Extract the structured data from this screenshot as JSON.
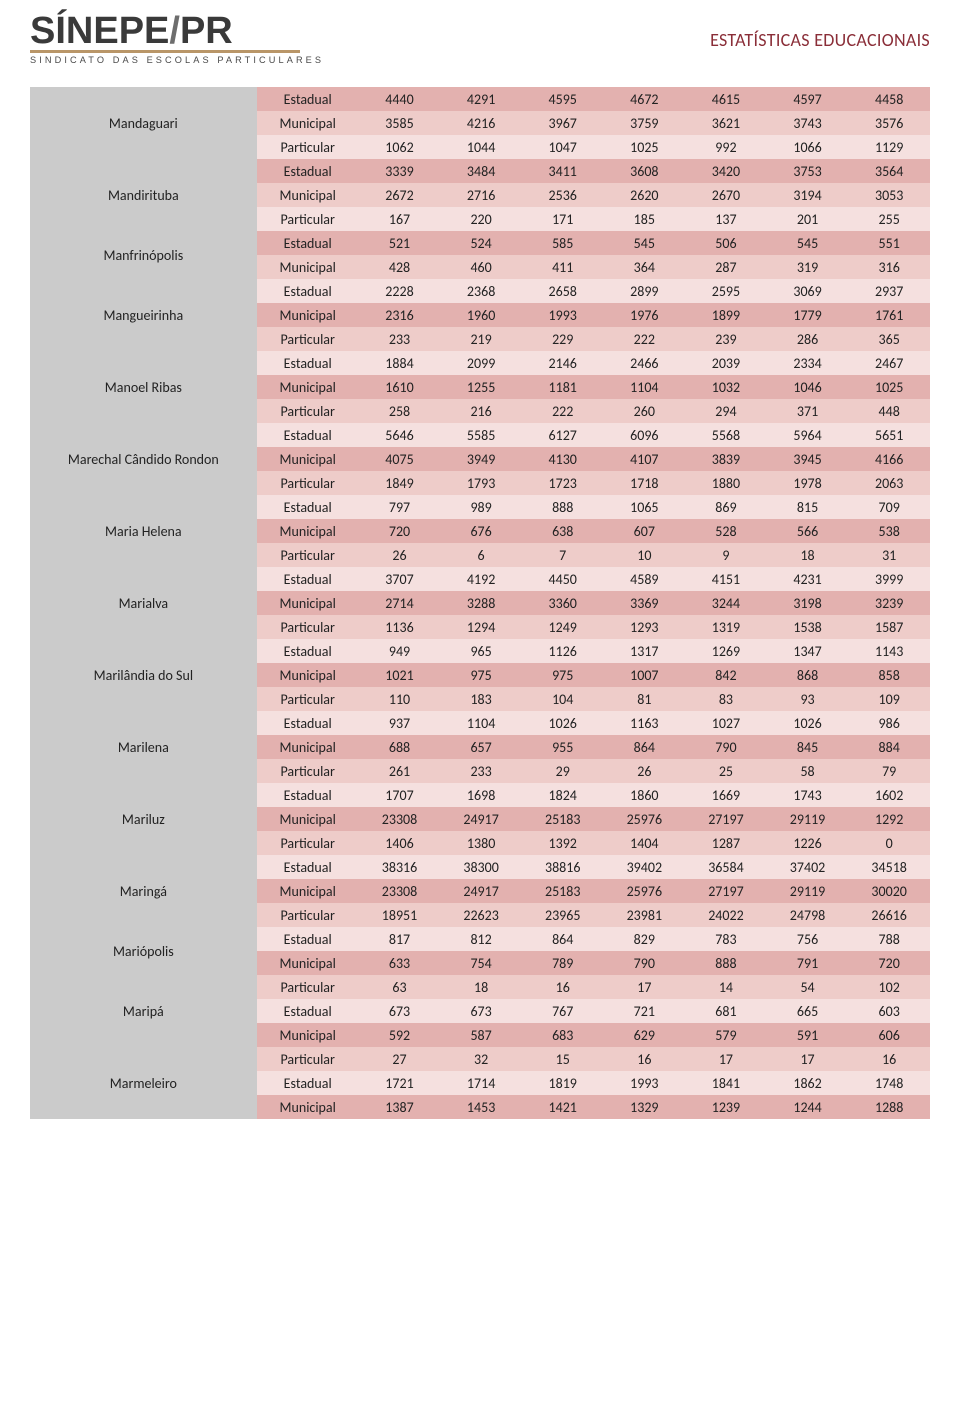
{
  "header": {
    "logo_main_left": "SÍNEPE",
    "logo_main_sep": "/",
    "logo_main_right": "PR",
    "logo_sub": "SINDICATO DAS ESCOLAS PARTICULARES",
    "title": "ESTATÍSTICAS EDUCACIONAIS"
  },
  "colors": {
    "tier": [
      "#e3b1af",
      "#eeccc9",
      "#f5e0df"
    ],
    "city_bg": "#cbcbcb",
    "text": "#222222",
    "title": "#8a2e38",
    "logo_bar": "#b99668"
  },
  "cities": [
    {
      "name": "Mandaguari",
      "rows": [
        {
          "type": "Estadual",
          "values": [
            4440,
            4291,
            4595,
            4672,
            4615,
            4597,
            4458
          ]
        },
        {
          "type": "Municipal",
          "values": [
            3585,
            4216,
            3967,
            3759,
            3621,
            3743,
            3576
          ]
        },
        {
          "type": "Particular",
          "values": [
            1062,
            1044,
            1047,
            1025,
            992,
            1066,
            1129
          ]
        }
      ]
    },
    {
      "name": "Mandirituba",
      "rows": [
        {
          "type": "Estadual",
          "values": [
            3339,
            3484,
            3411,
            3608,
            3420,
            3753,
            3564
          ]
        },
        {
          "type": "Municipal",
          "values": [
            2672,
            2716,
            2536,
            2620,
            2670,
            3194,
            3053
          ]
        },
        {
          "type": "Particular",
          "values": [
            167,
            220,
            171,
            185,
            137,
            201,
            255
          ]
        }
      ]
    },
    {
      "name": "Manfrinópolis",
      "rows": [
        {
          "type": "Estadual",
          "values": [
            521,
            524,
            585,
            545,
            506,
            545,
            551
          ]
        },
        {
          "type": "Municipal",
          "values": [
            428,
            460,
            411,
            364,
            287,
            319,
            316
          ]
        }
      ]
    },
    {
      "name": "Mangueirinha",
      "rows": [
        {
          "type": "Estadual",
          "values": [
            2228,
            2368,
            2658,
            2899,
            2595,
            3069,
            2937
          ]
        },
        {
          "type": "Municipal",
          "values": [
            2316,
            1960,
            1993,
            1976,
            1899,
            1779,
            1761
          ]
        },
        {
          "type": "Particular",
          "values": [
            233,
            219,
            229,
            222,
            239,
            286,
            365
          ]
        }
      ]
    },
    {
      "name": "Manoel Ribas",
      "rows": [
        {
          "type": "Estadual",
          "values": [
            1884,
            2099,
            2146,
            2466,
            2039,
            2334,
            2467
          ]
        },
        {
          "type": "Municipal",
          "values": [
            1610,
            1255,
            1181,
            1104,
            1032,
            1046,
            1025
          ]
        },
        {
          "type": "Particular",
          "values": [
            258,
            216,
            222,
            260,
            294,
            371,
            448
          ]
        }
      ]
    },
    {
      "name": "Marechal Cândido Rondon",
      "rows": [
        {
          "type": "Estadual",
          "values": [
            5646,
            5585,
            6127,
            6096,
            5568,
            5964,
            5651
          ]
        },
        {
          "type": "Municipal",
          "values": [
            4075,
            3949,
            4130,
            4107,
            3839,
            3945,
            4166
          ]
        },
        {
          "type": "Particular",
          "values": [
            1849,
            1793,
            1723,
            1718,
            1880,
            1978,
            2063
          ]
        }
      ]
    },
    {
      "name": "Maria Helena",
      "rows": [
        {
          "type": "Estadual",
          "values": [
            797,
            989,
            888,
            1065,
            869,
            815,
            709
          ]
        },
        {
          "type": "Municipal",
          "values": [
            720,
            676,
            638,
            607,
            528,
            566,
            538
          ]
        },
        {
          "type": "Particular",
          "values": [
            26,
            6,
            7,
            10,
            9,
            18,
            31
          ]
        }
      ]
    },
    {
      "name": "Marialva",
      "rows": [
        {
          "type": "Estadual",
          "values": [
            3707,
            4192,
            4450,
            4589,
            4151,
            4231,
            3999
          ]
        },
        {
          "type": "Municipal",
          "values": [
            2714,
            3288,
            3360,
            3369,
            3244,
            3198,
            3239
          ]
        },
        {
          "type": "Particular",
          "values": [
            1136,
            1294,
            1249,
            1293,
            1319,
            1538,
            1587
          ]
        }
      ]
    },
    {
      "name": "Marilândia do Sul",
      "rows": [
        {
          "type": "Estadual",
          "values": [
            949,
            965,
            1126,
            1317,
            1269,
            1347,
            1143
          ]
        },
        {
          "type": "Municipal",
          "values": [
            1021,
            975,
            975,
            1007,
            842,
            868,
            858
          ]
        },
        {
          "type": "Particular",
          "values": [
            110,
            183,
            104,
            81,
            83,
            93,
            109
          ]
        }
      ]
    },
    {
      "name": "Marilena",
      "rows": [
        {
          "type": "Estadual",
          "values": [
            937,
            1104,
            1026,
            1163,
            1027,
            1026,
            986
          ]
        },
        {
          "type": "Municipal",
          "values": [
            688,
            657,
            955,
            864,
            790,
            845,
            884
          ]
        },
        {
          "type": "Particular",
          "values": [
            261,
            233,
            29,
            26,
            25,
            58,
            79
          ]
        }
      ]
    },
    {
      "name": "Mariluz",
      "rows": [
        {
          "type": "Estadual",
          "values": [
            1707,
            1698,
            1824,
            1860,
            1669,
            1743,
            1602
          ]
        },
        {
          "type": "Municipal",
          "values": [
            23308,
            24917,
            25183,
            25976,
            27197,
            29119,
            1292
          ]
        },
        {
          "type": "Particular",
          "values": [
            1406,
            1380,
            1392,
            1404,
            1287,
            1226,
            0
          ]
        }
      ]
    },
    {
      "name": "Maringá",
      "rows": [
        {
          "type": "Estadual",
          "values": [
            38316,
            38300,
            38816,
            39402,
            36584,
            37402,
            34518
          ]
        },
        {
          "type": "Municipal",
          "values": [
            23308,
            24917,
            25183,
            25976,
            27197,
            29119,
            30020
          ]
        },
        {
          "type": "Particular",
          "values": [
            18951,
            22623,
            23965,
            23981,
            24022,
            24798,
            26616
          ]
        }
      ]
    },
    {
      "name": "Mariópolis",
      "rows": [
        {
          "type": "Estadual",
          "values": [
            817,
            812,
            864,
            829,
            783,
            756,
            788
          ]
        },
        {
          "type": "Municipal",
          "values": [
            633,
            754,
            789,
            790,
            888,
            791,
            720
          ]
        }
      ]
    },
    {
      "name": "Maripá",
      "rows": [
        {
          "type": "Particular",
          "values": [
            63,
            18,
            16,
            17,
            14,
            54,
            102
          ]
        },
        {
          "type": "Estadual",
          "values": [
            673,
            673,
            767,
            721,
            681,
            665,
            603
          ]
        },
        {
          "type": "Municipal",
          "values": [
            592,
            587,
            683,
            629,
            579,
            591,
            606
          ]
        }
      ]
    },
    {
      "name": "Marmeleiro",
      "rows": [
        {
          "type": "Particular",
          "values": [
            27,
            32,
            15,
            16,
            17,
            17,
            16
          ]
        },
        {
          "type": "Estadual",
          "values": [
            1721,
            1714,
            1819,
            1993,
            1841,
            1862,
            1748
          ]
        },
        {
          "type": "Municipal",
          "values": [
            1387,
            1453,
            1421,
            1329,
            1239,
            1244,
            1288
          ]
        }
      ]
    }
  ]
}
